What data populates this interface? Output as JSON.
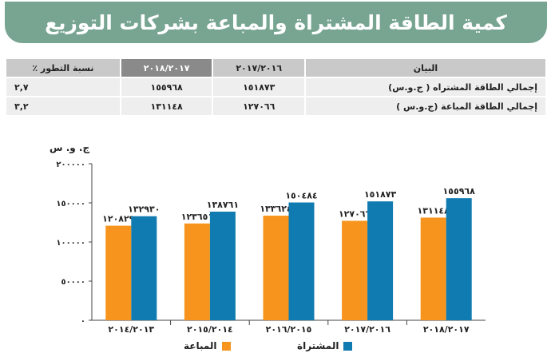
{
  "title": "كمية الطاقة المشتراة والمباعة بشركات التوزيع",
  "table": {
    "headers": [
      "البيان",
      "٢٠١٧/٢٠١٦",
      "٢٠١٨/٢٠١٧",
      "نسبة التطور ٪"
    ],
    "rows": [
      [
        "إجمالي الطاقة المشتراه ( ج.و.س)",
        "١٥١٨٧٣",
        "١٥٥٩٦٨",
        "٢,٧"
      ],
      [
        "إجمالي الطاقة المباعة  (ج.و.س )",
        "١٢٧٠٦٦",
        "١٣١١٤٨",
        "٣,٢"
      ]
    ]
  },
  "colors": {
    "banner": "#78a592",
    "sold": "#f7941d",
    "purchased": "#0f7bb0"
  },
  "chart_data": {
    "type": "bar",
    "ylabel": "ج. و. س",
    "ylim": [
      0,
      200000
    ],
    "ytick_values": [
      0,
      50000,
      100000,
      150000,
      200000
    ],
    "ytick_labels": [
      "٠",
      "٥٠٠٠٠",
      "١٠٠٠٠٠",
      "١٥٠٠٠٠",
      "٢٠٠٠٠٠"
    ],
    "categories": [
      "٢٠١٤/٢٠١٣",
      "٢٠١٥/٢٠١٤",
      "٢٠١٦/٢٠١٥",
      "٢٠١٧/٢٠١٦",
      "٢٠١٨/٢٠١٧"
    ],
    "series": [
      {
        "name": "المباعة",
        "color": "#f7941d",
        "values": [
          120829,
          123651,
          133624,
          127066,
          131148
        ],
        "labels": [
          "١٢٠٨٢٩",
          "١٢٣٦٥١",
          "١٣٣٦٢٤",
          "١٢٧٠٦٦",
          "١٣١١٤٨"
        ]
      },
      {
        "name": "المشتراة",
        "color": "#0f7bb0",
        "values": [
          132930,
          138761,
          150484,
          151873,
          155968
        ],
        "labels": [
          "١٣٢٩٣٠",
          "١٣٨٧٦١",
          "١٥٠٤٨٤",
          "١٥١٨٧٣",
          "١٥٥٩٦٨"
        ]
      }
    ],
    "grid": false,
    "legend": "bottom"
  }
}
